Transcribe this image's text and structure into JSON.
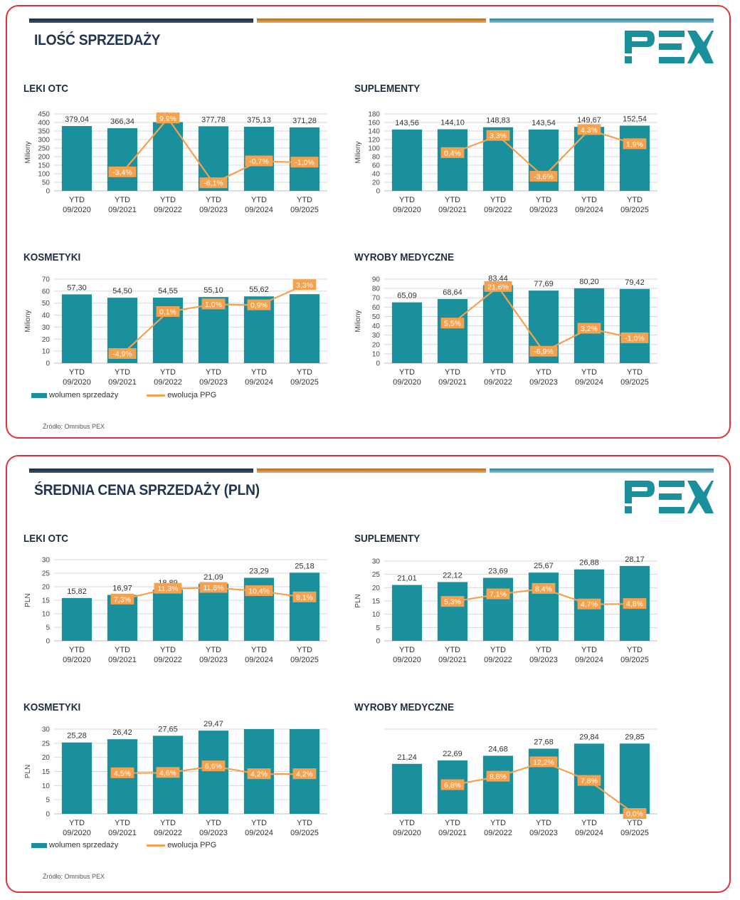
{
  "panels": [
    {
      "title": "ILOŚĆ SPRZEDAŻY",
      "source": "Źródło: Omnibus PEX",
      "legend": {
        "bar": "wolumen sprzedaży",
        "line": "ewolucja PPG"
      },
      "logo": "PEX"
    },
    {
      "title": "ŚREDNIA CENA SPRZEDAŻY (PLN)",
      "source": "Źródło: Omnibus PEX",
      "legend": {
        "bar": "wolumen sprzedaży",
        "line": "ewolucja PPG"
      },
      "logo": "PEX"
    }
  ],
  "colors": {
    "bar": "#1a909c",
    "line": "#f4a24f",
    "label_bg": "#f4a24f",
    "border": "#e0303a",
    "title": "#1f3550"
  },
  "chart_data": [
    {
      "type": "bar",
      "title": "LEKI OTC",
      "ylabel": "Miliony",
      "categories": [
        "YTD\n09/2020",
        "YTD\n09/2021",
        "YTD\n09/2022",
        "YTD\n09/2023",
        "YTD\n09/2024",
        "YTD\n09/2025"
      ],
      "values": [
        379.04,
        366.34,
        402.44,
        377.78,
        375.13,
        371.28
      ],
      "value_labels": [
        "379,04",
        "366,34",
        "402,44",
        "377,78",
        "375,13",
        "371,28"
      ],
      "ylim": [
        0,
        450
      ],
      "yticks": [
        0,
        50,
        100,
        150,
        200,
        250,
        300,
        350,
        400,
        450
      ],
      "line": {
        "values": [
          null,
          -3.4,
          9.9,
          -6.1,
          -0.7,
          -1.0
        ],
        "labels": [
          null,
          "-3,4%",
          "9,9%",
          "-6,1%",
          "-0,7%",
          "-1,0%"
        ],
        "ylim": [
          -8,
          11
        ]
      },
      "grid": true
    },
    {
      "type": "bar",
      "title": "SUPLEMENTY",
      "ylabel": "Miliony",
      "categories": [
        "YTD\n09/2020",
        "YTD\n09/2021",
        "YTD\n09/2022",
        "YTD\n09/2023",
        "YTD\n09/2024",
        "YTD\n09/2025"
      ],
      "values": [
        143.56,
        144.1,
        148.83,
        143.54,
        149.67,
        152.54
      ],
      "value_labels": [
        "143,56",
        "144,10",
        "148,83",
        "143,54",
        "149,67",
        "152,54"
      ],
      "ylim": [
        0,
        180
      ],
      "yticks": [
        0,
        20,
        40,
        60,
        80,
        100,
        120,
        140,
        160,
        180
      ],
      "line": {
        "values": [
          null,
          0.4,
          3.3,
          -3.6,
          4.3,
          1.9
        ],
        "labels": [
          null,
          "0,4%",
          "3,3%",
          "-3,6%",
          "4,3%",
          "1,9%"
        ],
        "ylim": [
          -6,
          7
        ]
      },
      "grid": true
    },
    {
      "type": "bar",
      "title": "KOSMETYKI",
      "ylabel": "Miliony",
      "categories": [
        "YTD\n09/2020",
        "YTD\n09/2021",
        "YTD\n09/2022",
        "YTD\n09/2023",
        "YTD\n09/2024",
        "YTD\n09/2025"
      ],
      "values": [
        57.3,
        54.5,
        54.55,
        55.1,
        55.62,
        57.45
      ],
      "value_labels": [
        "57,30",
        "54,50",
        "54,55",
        "55,10",
        "55,62",
        ""
      ],
      "ylim": [
        0,
        70
      ],
      "yticks": [
        0,
        10,
        20,
        30,
        40,
        50,
        60,
        70
      ],
      "line": {
        "values": [
          null,
          -4.9,
          0.1,
          1.0,
          0.9,
          3.3
        ],
        "labels": [
          null,
          "-4,9%",
          "0,1%",
          "1,0%",
          "0,9%",
          "3,3%"
        ],
        "ylim": [
          -6,
          4
        ]
      },
      "grid": true
    },
    {
      "type": "bar",
      "title": "WYROBY MEDYCZNE",
      "ylabel": "Miliony",
      "categories": [
        "YTD\n09/2020",
        "YTD\n09/2021",
        "YTD\n09/2022",
        "YTD\n09/2023",
        "YTD\n09/2024",
        "YTD\n09/2025"
      ],
      "values": [
        65.09,
        68.64,
        83.44,
        77.69,
        80.2,
        79.42
      ],
      "value_labels": [
        "65,09",
        "68,64",
        "83,44",
        "77,69",
        "80,20",
        "79,42"
      ],
      "ylim": [
        0,
        90
      ],
      "yticks": [
        0,
        10,
        20,
        30,
        40,
        50,
        60,
        70,
        80,
        90
      ],
      "line": {
        "values": [
          null,
          5.5,
          21.6,
          -6.9,
          3.2,
          -1.0
        ],
        "labels": [
          null,
          "5,5%",
          "21,6%",
          "-6,9%",
          "3,2%",
          "-1,0%"
        ],
        "ylim": [
          -12,
          25
        ]
      },
      "grid": true
    },
    {
      "type": "bar",
      "title": "LEKI OTC",
      "ylabel": "PLN",
      "categories": [
        "YTD\n09/2020",
        "YTD\n09/2021",
        "YTD\n09/2022",
        "YTD\n09/2023",
        "YTD\n09/2024",
        "YTD\n09/2025"
      ],
      "values": [
        15.82,
        16.97,
        18.89,
        21.09,
        23.29,
        25.18
      ],
      "value_labels": [
        "15,82",
        "16,97",
        "18,89",
        "21,09",
        "23,29",
        "25,18"
      ],
      "ylim": [
        0,
        30
      ],
      "yticks": [
        0,
        5,
        10,
        15,
        20,
        25,
        30
      ],
      "line": {
        "values": [
          null,
          7.3,
          11.3,
          11.6,
          10.4,
          8.1
        ],
        "labels": [
          null,
          "7,3%",
          "11,3%",
          "11,6%",
          "10,4%",
          "8,1%"
        ],
        "ylim": [
          -8,
          22
        ]
      },
      "grid": true
    },
    {
      "type": "bar",
      "title": "SUPLEMENTY",
      "ylabel": "PLN",
      "categories": [
        "YTD\n09/2020",
        "YTD\n09/2021",
        "YTD\n09/2022",
        "YTD\n09/2023",
        "YTD\n09/2024",
        "YTD\n09/2025"
      ],
      "values": [
        21.01,
        22.12,
        23.69,
        25.67,
        26.88,
        28.17
      ],
      "value_labels": [
        "21,01",
        "22,12",
        "23,69",
        "25,67",
        "26,88",
        "28,17"
      ],
      "ylim": [
        0,
        30
      ],
      "yticks": [
        0,
        5,
        10,
        15,
        20,
        25,
        30
      ],
      "line": {
        "values": [
          null,
          5.3,
          7.1,
          8.4,
          4.7,
          4.8
        ],
        "labels": [
          null,
          "5,3%",
          "7,1%",
          "8,4%",
          "4,7%",
          "4,8%"
        ],
        "ylim": [
          -4,
          15
        ]
      },
      "grid": true
    },
    {
      "type": "bar",
      "title": "KOSMETYKI",
      "ylabel": "PLN",
      "categories": [
        "YTD\n09/2020",
        "YTD\n09/2021",
        "YTD\n09/2022",
        "YTD\n09/2023",
        "YTD\n09/2024",
        "YTD\n09/2025"
      ],
      "values": [
        25.28,
        26.42,
        27.65,
        29.47,
        30.71,
        32.0
      ],
      "value_labels": [
        "25,28",
        "26,42",
        "27,65",
        "29,47",
        "",
        ""
      ],
      "ylim": [
        0,
        30
      ],
      "yticks": [
        0,
        5,
        10,
        15,
        20,
        25,
        30
      ],
      "line": {
        "values": [
          null,
          4.5,
          4.6,
          6.6,
          4.2,
          4.2
        ],
        "labels": [
          null,
          "4,5%",
          "4,6%",
          "6,6%",
          "4,2%",
          "4,2%"
        ],
        "ylim": [
          -8,
          18
        ]
      },
      "grid": true
    },
    {
      "type": "bar",
      "title": "WYROBY MEDYCZNE",
      "ylabel": "",
      "categories": [
        "YTD\n09/2020",
        "YTD\n09/2021",
        "YTD\n09/2022",
        "YTD\n09/2023",
        "YTD\n09/2024",
        "YTD\n09/2025"
      ],
      "values": [
        21.24,
        22.69,
        24.68,
        27.68,
        29.84,
        29.85
      ],
      "value_labels": [
        "21,24",
        "22,69",
        "24,68",
        "27,68",
        "29,84",
        "29,85"
      ],
      "ylim": [
        0,
        36
      ],
      "yticks": [],
      "line": {
        "values": [
          null,
          6.8,
          8.8,
          12.2,
          7.8,
          0.0
        ],
        "labels": [
          null,
          "6,8%",
          "8,8%",
          "12,2%",
          "7,8%",
          "0,0%"
        ],
        "ylim": [
          0,
          20
        ]
      },
      "grid": true
    }
  ]
}
